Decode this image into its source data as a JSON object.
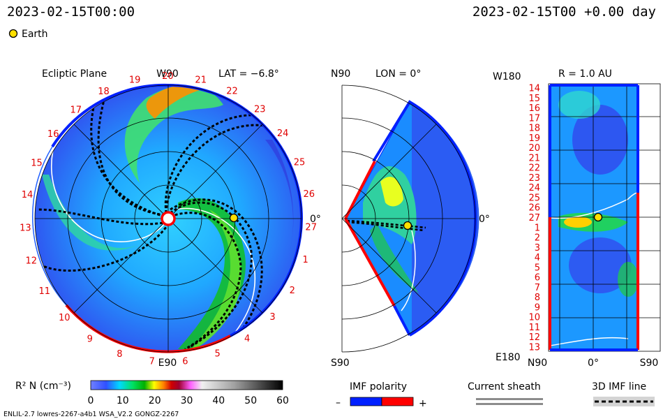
{
  "header": {
    "left_time": "2023-02-15T00:00",
    "right_time": "2023-02-15T00 +0.00 day",
    "earth_legend": "Earth"
  },
  "colors": {
    "earth_marker": "#ffe000",
    "positive_polarity": "#ff0000",
    "negative_polarity": "#0020ff",
    "sheath": "#8c8c8c"
  },
  "icons": {
    "earth": "yellow-circle-icon"
  },
  "chart_data": [
    {
      "type": "heatmap",
      "panel": "ecliptic",
      "title": "Ecliptic Plane",
      "top_label": "W90",
      "lat_label": "LAT = −6.8°",
      "bottom_label": "E90",
      "right_label": "0°",
      "carrington_labels": [
        "19",
        "20",
        "21",
        "22",
        "23",
        "24",
        "25",
        "26",
        "27",
        "1",
        "2",
        "3",
        "4",
        "5",
        "6",
        "7",
        "8",
        "9",
        "10",
        "11",
        "12",
        "13",
        "14",
        "15",
        "16",
        "17",
        "18"
      ],
      "grid": true,
      "earth": {
        "lon_deg": 0,
        "r_au": 1.0
      }
    },
    {
      "type": "heatmap",
      "panel": "meridional",
      "title": "LON = 0°",
      "top_label": "N90",
      "bottom_label": "S90",
      "right_label": "0°",
      "grid": true,
      "earth": {
        "lat_deg": 0,
        "r_au": 1.0
      }
    },
    {
      "type": "heatmap",
      "panel": "radial_surface",
      "title": "R = 1.0 AU",
      "top_label": "W180",
      "bottom_label": "E180",
      "x_ticks": [
        "N90",
        "0°",
        "S90"
      ],
      "y_labels": [
        "14",
        "15",
        "16",
        "17",
        "18",
        "19",
        "20",
        "21",
        "22",
        "23",
        "24",
        "25",
        "26",
        "27",
        "1",
        "2",
        "3",
        "4",
        "5",
        "6",
        "7",
        "8",
        "9",
        "10",
        "11",
        "12",
        "13"
      ],
      "grid": true
    }
  ],
  "colorbar": {
    "label": "R² N (cm⁻³)",
    "ticks": [
      "0",
      "10",
      "20",
      "30",
      "40",
      "50",
      "60"
    ],
    "range": [
      0,
      60
    ]
  },
  "legends": {
    "imf_title": "IMF polarity",
    "imf_minus": "–",
    "imf_plus": "+",
    "sheath_title": "Current sheath",
    "line_title": "3D IMF line"
  },
  "footer": {
    "left": "ENLIL-2.7 lowres-2267-a4b1 WSA_V2.2 GONGZ-2267"
  }
}
